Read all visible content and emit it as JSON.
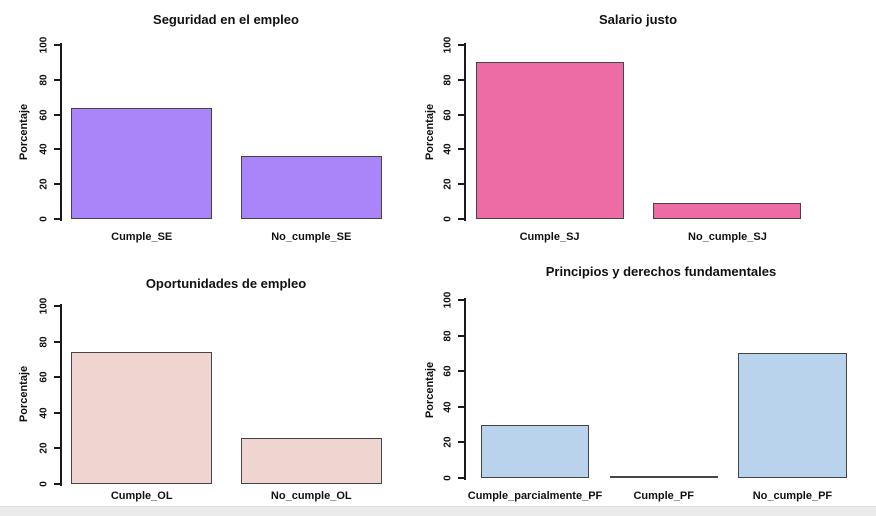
{
  "page": {
    "background": "#ffffff",
    "footer_strip_color": "#ebebeb",
    "axis_color": "#1a1a1a",
    "bar_border_color": "#454545"
  },
  "chart_data": [
    {
      "type": "bar",
      "title": "Seguridad en el empleo",
      "ylabel": "Porcentaje",
      "xlabel": "",
      "categories": [
        "Cumple_SE",
        "No_cumple_SE"
      ],
      "values": [
        64,
        36
      ],
      "ylim": [
        0,
        100
      ],
      "yticks": [
        0,
        20,
        40,
        60,
        80,
        100
      ],
      "bar_color": "#aa85fa",
      "grid": false,
      "legend": "none"
    },
    {
      "type": "bar",
      "title": "Salario justo",
      "ylabel": "Porcentaje",
      "xlabel": "",
      "categories": [
        "Cumple_SJ",
        "No_cumple_SJ"
      ],
      "values": [
        90,
        9
      ],
      "ylim": [
        0,
        100
      ],
      "yticks": [
        0,
        20,
        40,
        60,
        80,
        100
      ],
      "bar_color": "#ed6ca6",
      "grid": false,
      "legend": "none"
    },
    {
      "type": "bar",
      "title": "Oportunidades de empleo",
      "ylabel": "Porcentaje",
      "xlabel": "",
      "categories": [
        "Cumple_OL",
        "No_cumple_OL"
      ],
      "values": [
        74,
        26
      ],
      "ylim": [
        0,
        100
      ],
      "yticks": [
        0,
        20,
        40,
        60,
        80,
        100
      ],
      "bar_color": "#efd4d0",
      "grid": false,
      "legend": "none"
    },
    {
      "type": "bar",
      "title": "Principios y derechos fundamentales",
      "ylabel": "Porcentaje",
      "xlabel": "",
      "categories": [
        "Cumple_parcialmente_PF",
        "Cumple_PF",
        "No_cumple_PF"
      ],
      "values": [
        30,
        1,
        70
      ],
      "ylim": [
        0,
        100
      ],
      "yticks": [
        0,
        20,
        40,
        60,
        80,
        100
      ],
      "bar_color": "#b9d3ec",
      "grid": false,
      "legend": "none"
    }
  ]
}
